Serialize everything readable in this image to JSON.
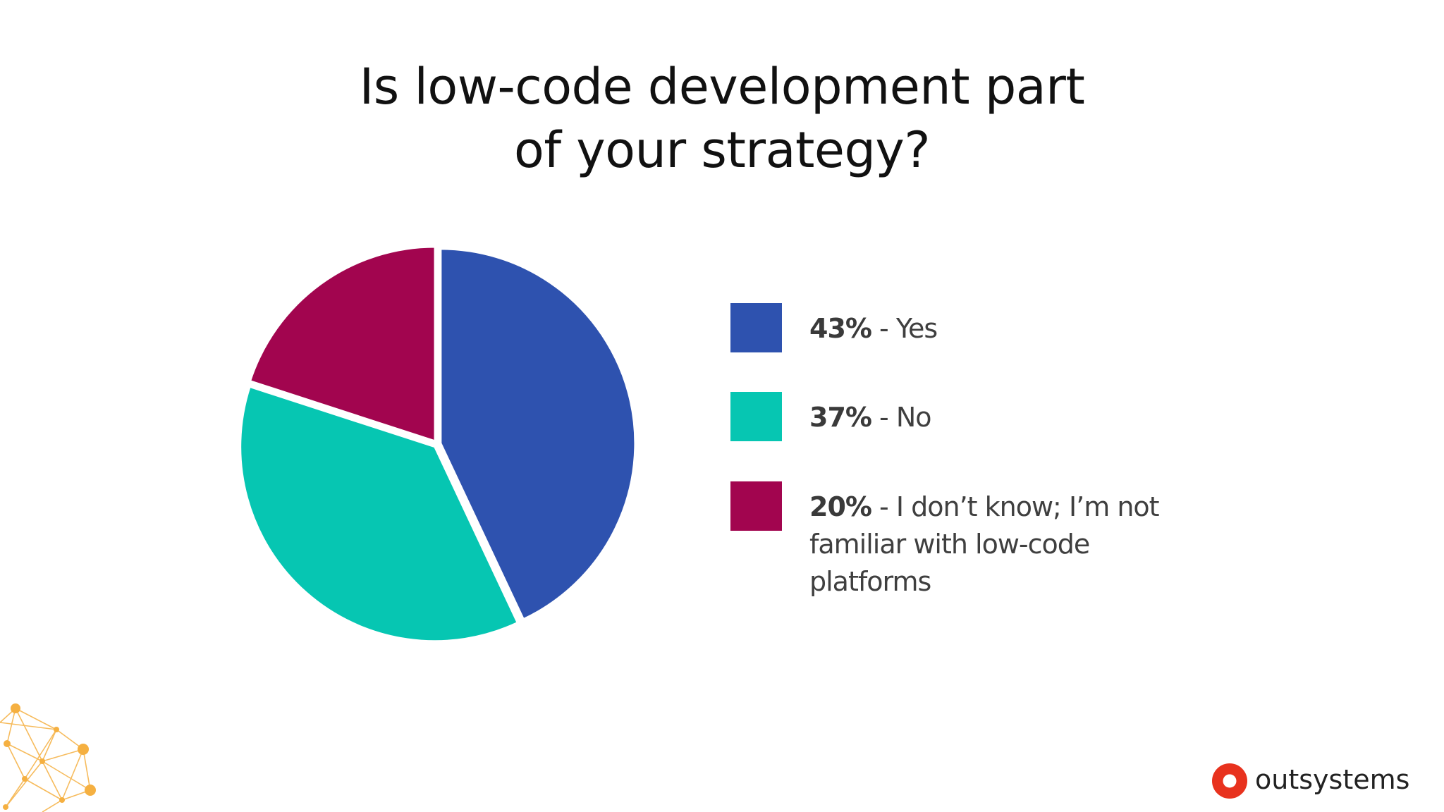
{
  "title": {
    "line1": "Is low-code development part",
    "line2": "of your strategy?"
  },
  "chart_data": {
    "type": "pie",
    "title": "Is low-code development part of your strategy?",
    "categories": [
      "Yes",
      "No",
      "I don’t know; I’m not familiar with low-code platforms"
    ],
    "values": [
      43,
      37,
      20
    ],
    "unit": "%",
    "legend_placement": "right",
    "colors": [
      "#2E52AF",
      "#06C6B2",
      "#A2054F"
    ]
  },
  "legend": {
    "items": [
      {
        "pct": "43%",
        "sep": " - ",
        "label": "Yes",
        "color": "#2E52AF"
      },
      {
        "pct": "37%",
        "sep": " - ",
        "label": "No",
        "color": "#06C6B2"
      },
      {
        "pct": "20%",
        "sep": " - ",
        "label": "I don’t know; I’m not familiar with low-code platforms",
        "color": "#A2054F"
      }
    ]
  },
  "brand": {
    "name": "outsystems",
    "logo_icon": "outsystems-logo-icon",
    "accent": "#E8321E"
  },
  "decor": {
    "icon": "network-nodes-icon",
    "color": "#F5B041"
  }
}
